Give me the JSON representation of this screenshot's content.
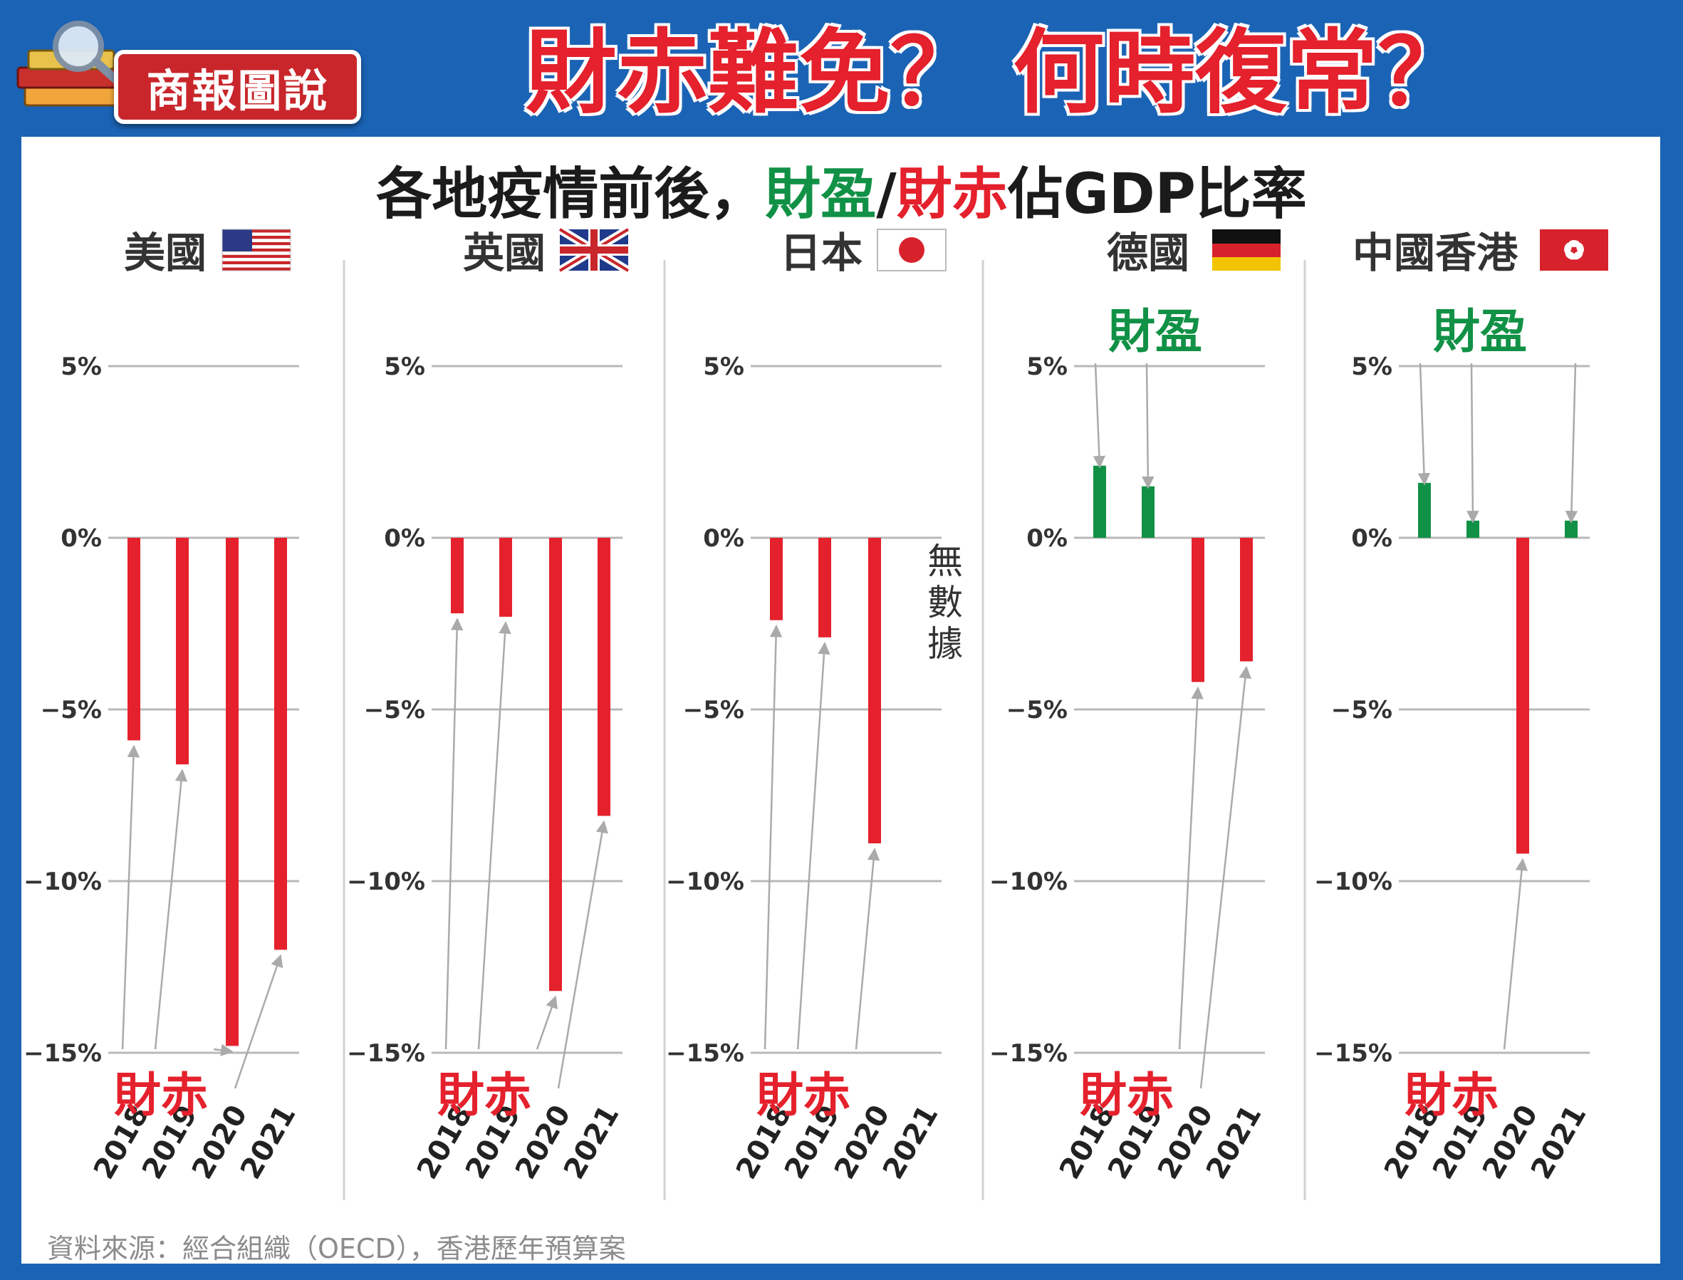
{
  "header": {
    "badge": "商報圖說",
    "title": "財赤難免？ 何時復常？"
  },
  "subtitle": {
    "prefix": "各地疫情前後，",
    "surplus": "財盈",
    "slash": "/",
    "deficit": "財赤",
    "suffix": "佔GDP比率"
  },
  "labels": {
    "surplus": "財盈",
    "deficit": "財赤",
    "no_data": "無數據"
  },
  "source": "資料來源：經合組織（OECD），香港歷年預算案",
  "colors": {
    "background": "#1a63b5",
    "surplus": "#119146",
    "deficit": "#e4212c",
    "badge": "#c8262b",
    "grid": "#b8b8b8",
    "arrow": "#aaaaaa"
  },
  "chart_data": {
    "type": "bar",
    "title": "各地疫情前後，財盈/財赤佔GDP比率",
    "categories": [
      "2018",
      "2019",
      "2020",
      "2021"
    ],
    "yticks": [
      "5%",
      "0%",
      "−5%",
      "−10%",
      "−15%"
    ],
    "ylim": [
      -15,
      5
    ],
    "ytick_values": [
      5,
      0,
      -5,
      -10,
      -15
    ],
    "grid": true,
    "panels": [
      {
        "name": "美國",
        "flag": "us-flag-icon",
        "values": [
          -5.9,
          -6.6,
          -14.8,
          -12.0
        ],
        "surplus_label": false,
        "no_data": false
      },
      {
        "name": "英國",
        "flag": "uk-flag-icon",
        "values": [
          -2.2,
          -2.3,
          -13.2,
          -8.1
        ],
        "surplus_label": false,
        "no_data": false
      },
      {
        "name": "日本",
        "flag": "japan-flag-icon",
        "values": [
          -2.4,
          -2.9,
          -8.9,
          null
        ],
        "surplus_label": false,
        "no_data": true
      },
      {
        "name": "德國",
        "flag": "germany-flag-icon",
        "values": [
          2.1,
          1.5,
          -4.2,
          -3.6
        ],
        "surplus_label": true,
        "no_data": false
      },
      {
        "name": "中國香港",
        "flag": "hongkong-flag-icon",
        "values": [
          1.6,
          0.5,
          -9.2,
          0.5
        ],
        "surplus_label": true,
        "no_data": false
      }
    ]
  }
}
